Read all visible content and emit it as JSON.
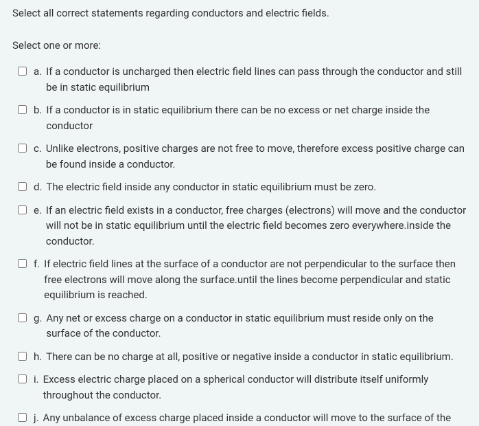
{
  "question": "Select all correct statements regarding conductors and electric fields.",
  "prompt": "Select one or more:",
  "options": [
    {
      "letter": "a.",
      "text": "If a conductor is uncharged then electric field lines can pass through the conductor and still be in static equilibrium"
    },
    {
      "letter": "b.",
      "text": "If a conductor is in static equilibrium there can be no excess or net charge inside the conductor"
    },
    {
      "letter": "c.",
      "text": "Unlike electrons, positive charges are not free to move, therefore excess positive charge can be found inside a  conductor."
    },
    {
      "letter": "d.",
      "text": "The electric field inside any conductor in static equilibrium must be zero."
    },
    {
      "letter": "e.",
      "text": "If an electric field exists in a conductor, free charges (electrons) will move and the conductor will not be in static equilibrium until the electric field becomes zero everywhere.inside the conductor."
    },
    {
      "letter": "f.",
      "text": "If electric field lines at the surface of a conductor are not perpendicular to the surface then free electrons will move along the surface.until the lines become perpendicular and static equilibrium is reached."
    },
    {
      "letter": "g.",
      "text": "Any net or excess charge on a conductor in static equilibrium must reside only on the surface of the conductor."
    },
    {
      "letter": "h.",
      "text": "There can be no charge at all, positive or negative inside a conductor in static equilibrium."
    },
    {
      "letter": "i.",
      "text": "Excess electric charge placed on a spherical conductor will distribute itself uniformly throughout the conductor."
    },
    {
      "letter": "j.",
      "text": "Any unbalance of excess charge placed inside a conductor will move to the surface of the"
    }
  ]
}
